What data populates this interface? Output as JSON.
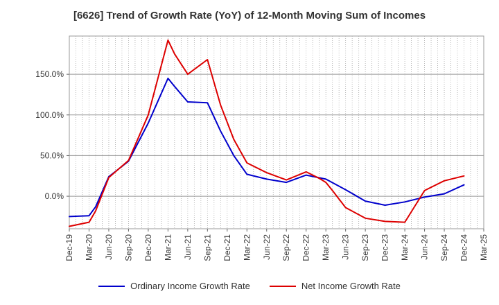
{
  "chart_data": {
    "type": "line",
    "title": "[6626]  Trend of Growth Rate (YoY) of 12-Month Moving Sum of Incomes",
    "xlabel": "",
    "ylabel": "",
    "ylim": [
      -40,
      197
    ],
    "y_ticks": [
      0,
      50,
      100,
      150
    ],
    "y_tick_labels": [
      "0.0%",
      "50.0%",
      "100.0%",
      "150.0%"
    ],
    "x_tick_labels": [
      "Dec-19",
      "Mar-20",
      "Jun-20",
      "Sep-20",
      "Dec-20",
      "Mar-21",
      "Jun-21",
      "Sep-21",
      "Dec-21",
      "Mar-22",
      "Jun-22",
      "Sep-22",
      "Dec-22",
      "Mar-23",
      "Jun-23",
      "Sep-23",
      "Dec-23",
      "Mar-24",
      "Jun-24",
      "Sep-24",
      "Dec-24",
      "Mar-25"
    ],
    "x_months": [
      "2019-12",
      "2020-01",
      "2020-02",
      "2020-03",
      "2020-04",
      "2020-05",
      "2020-06",
      "2020-07",
      "2020-08",
      "2020-09",
      "2020-10",
      "2020-11",
      "2020-12",
      "2021-01",
      "2021-02",
      "2021-03",
      "2021-04",
      "2021-05",
      "2021-06",
      "2021-07",
      "2021-08",
      "2021-09",
      "2021-10",
      "2021-11",
      "2021-12",
      "2022-01",
      "2022-02",
      "2022-03",
      "2022-04",
      "2022-05",
      "2022-06",
      "2022-07",
      "2022-08",
      "2022-09",
      "2022-10",
      "2022-11",
      "2022-12",
      "2023-01",
      "2023-02",
      "2023-03",
      "2023-04",
      "2023-05",
      "2023-06",
      "2023-07",
      "2023-08",
      "2023-09",
      "2023-10",
      "2023-11",
      "2023-12",
      "2024-01",
      "2024-02",
      "2024-03",
      "2024-04",
      "2024-05",
      "2024-06",
      "2024-07",
      "2024-08",
      "2024-09",
      "2024-10",
      "2024-11",
      "2024-12",
      "2025-01",
      "2025-02",
      "2025-03"
    ],
    "grid": true,
    "legend_position": "bottom",
    "series": [
      {
        "name": "Ordinary Income Growth Rate",
        "color": "#0000cc",
        "points": [
          [
            0,
            -25
          ],
          [
            3,
            -24
          ],
          [
            4,
            -13
          ],
          [
            6,
            24
          ],
          [
            9,
            43
          ],
          [
            12,
            90
          ],
          [
            15,
            145
          ],
          [
            16,
            135
          ],
          [
            18,
            116
          ],
          [
            21,
            115
          ],
          [
            23,
            80
          ],
          [
            25,
            50
          ],
          [
            27,
            27
          ],
          [
            30,
            21
          ],
          [
            33,
            17
          ],
          [
            36,
            26
          ],
          [
            39,
            21
          ],
          [
            42,
            8
          ],
          [
            45,
            -6
          ],
          [
            48,
            -11
          ],
          [
            51,
            -7
          ],
          [
            54,
            -1
          ],
          [
            57,
            3
          ],
          [
            60,
            14
          ]
        ]
      },
      {
        "name": "Net Income Growth Rate",
        "color": "#dd0000",
        "points": [
          [
            0,
            -37
          ],
          [
            3,
            -32
          ],
          [
            4,
            -18
          ],
          [
            6,
            23
          ],
          [
            9,
            44
          ],
          [
            12,
            100
          ],
          [
            15,
            192
          ],
          [
            16,
            175
          ],
          [
            18,
            150
          ],
          [
            21,
            168
          ],
          [
            22,
            140
          ],
          [
            23,
            112
          ],
          [
            25,
            70
          ],
          [
            27,
            41
          ],
          [
            30,
            29
          ],
          [
            33,
            20
          ],
          [
            36,
            30
          ],
          [
            38,
            22
          ],
          [
            39,
            17
          ],
          [
            40,
            7
          ],
          [
            42,
            -14
          ],
          [
            45,
            -27
          ],
          [
            48,
            -31
          ],
          [
            51,
            -32
          ],
          [
            54,
            7
          ],
          [
            57,
            19
          ],
          [
            60,
            25
          ]
        ]
      }
    ]
  }
}
